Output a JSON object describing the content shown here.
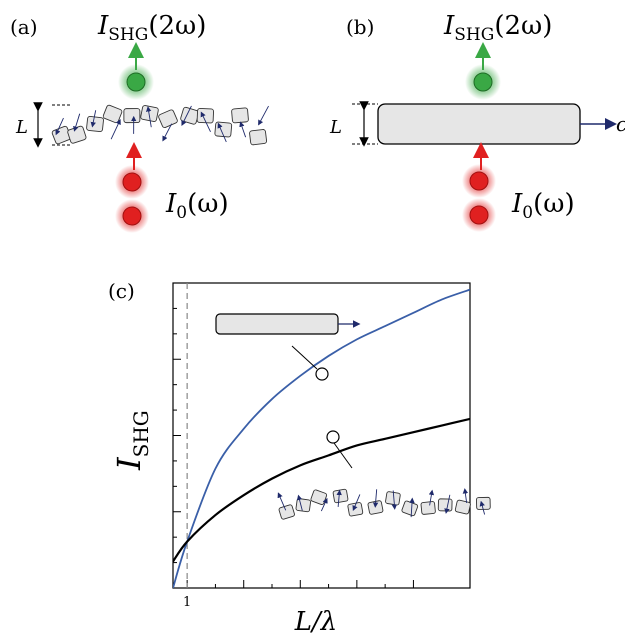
{
  "panel_a": {
    "label": "(a)",
    "output_label": "I",
    "output_sub": "SHG",
    "output_arg": "(2ω)",
    "input_label": "I",
    "input_sub": "0",
    "input_arg": "(ω)",
    "thickness_label": "L"
  },
  "panel_b": {
    "label": "(b)",
    "output_label": "I",
    "output_sub": "SHG",
    "output_arg": "(2ω)",
    "input_label": "I",
    "input_sub": "0",
    "input_arg": "(ω)",
    "thickness_label": "L",
    "polarization_label": "c"
  },
  "panel_c": {
    "label": "(c)",
    "ylabel_main": "I",
    "ylabel_sub": "SHG",
    "xlabel": "L/λ",
    "xtick_label": "1"
  },
  "colors": {
    "green_beam": "#3aa845",
    "red_beam": "#e02020",
    "blue_curve": "#3a5fa8",
    "black_curve": "#000000",
    "slab_fill": "#e6e6e6",
    "arrow_navy": "#1f2a6b"
  },
  "chart_data": {
    "type": "line",
    "xlabel": "L/λ",
    "ylabel": "I_SHG",
    "xticks": [
      1
    ],
    "series": [
      {
        "name": "",
        "color": "#3a5fa8",
        "x": [
          0.75,
          1.0,
          1.5,
          2.0,
          2.5,
          3.0,
          3.5,
          4.0,
          4.5,
          5.0,
          5.5,
          6.0
        ],
        "y": [
          -0.3,
          0.4,
          1.5,
          2.1,
          2.55,
          2.9,
          3.2,
          3.45,
          3.65,
          3.85,
          4.05,
          4.2
        ]
      },
      {
        "name": "",
        "color": "#000000",
        "x": [
          0.75,
          1.0,
          1.5,
          2.0,
          2.5,
          3.0,
          3.5,
          4.0,
          4.5,
          5.0,
          5.5,
          6.0
        ],
        "y": [
          0.1,
          0.4,
          0.8,
          1.1,
          1.35,
          1.55,
          1.7,
          1.85,
          1.95,
          2.05,
          2.15,
          2.25
        ]
      }
    ]
  }
}
